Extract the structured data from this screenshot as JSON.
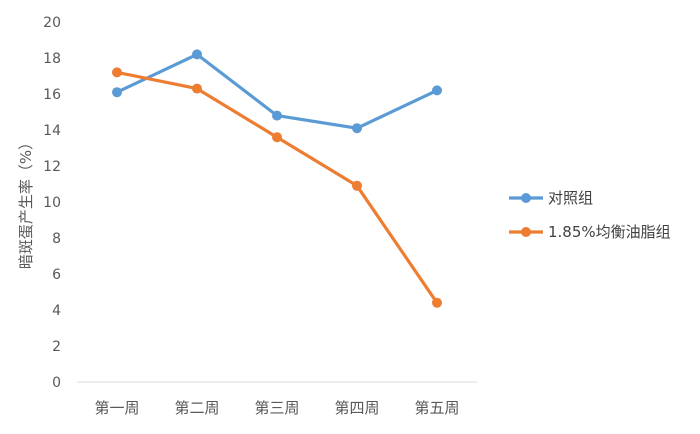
{
  "chart_data": {
    "type": "line",
    "title": "",
    "xlabel": "",
    "ylabel": "暗斑蛋产生率（%）",
    "categories": [
      "第一周",
      "第二周",
      "第三周",
      "第四周",
      "第五周"
    ],
    "ylim": [
      0,
      20
    ],
    "yticks": [
      "0",
      "2",
      "4",
      "6",
      "8",
      "10",
      "12",
      "14",
      "16",
      "18",
      "20"
    ],
    "grid": false,
    "legend_position": "right",
    "series": [
      {
        "name": "对照组",
        "color": "#5b9bd5",
        "values": [
          16.1,
          18.2,
          14.8,
          14.1,
          16.2
        ]
      },
      {
        "name": "1.85%均衡油脂组",
        "color": "#ed7d31",
        "values": [
          17.2,
          16.3,
          13.6,
          10.9,
          4.4
        ]
      }
    ]
  }
}
